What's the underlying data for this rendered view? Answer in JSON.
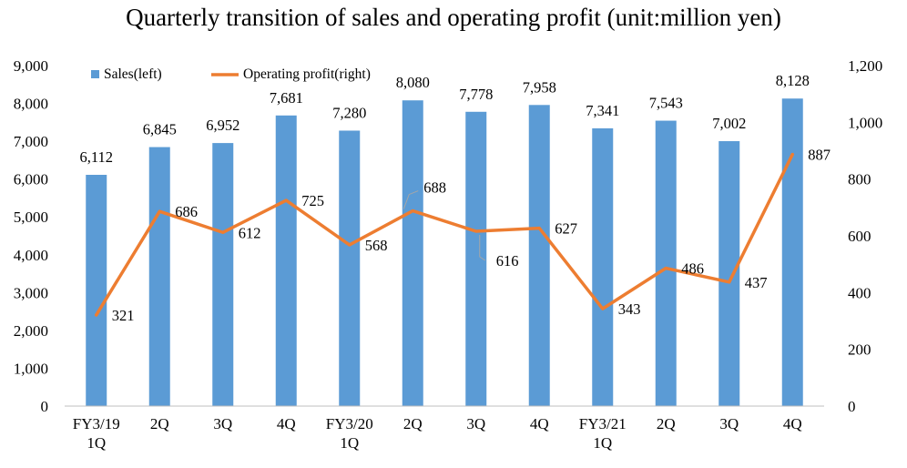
{
  "chart_data": {
    "type": "bar+line",
    "title": "Quarterly transition of sales and operating profit (unit:million yen)",
    "categories": [
      [
        "FY3/19",
        "1Q"
      ],
      [
        "2Q"
      ],
      [
        "3Q"
      ],
      [
        "4Q"
      ],
      [
        "FY3/20",
        "1Q"
      ],
      [
        "2Q"
      ],
      [
        "3Q"
      ],
      [
        "4Q"
      ],
      [
        "FY3/21",
        "1Q"
      ],
      [
        "2Q"
      ],
      [
        "3Q"
      ],
      [
        "4Q"
      ]
    ],
    "series": [
      {
        "name": "Sales(left)",
        "type": "bar",
        "axis": "left",
        "color": "#5b9bd5",
        "values": [
          6112,
          6845,
          6952,
          7681,
          7280,
          8080,
          7778,
          7958,
          7341,
          7543,
          7002,
          8128
        ],
        "labels": [
          "6,112",
          "6,845",
          "6,952",
          "7,681",
          "7,280",
          "8,080",
          "7,778",
          "7,958",
          "7,341",
          "7,543",
          "7,002",
          "8,128"
        ]
      },
      {
        "name": "Operating profit(right)",
        "type": "line",
        "axis": "right",
        "color": "#ed7d31",
        "values": [
          321,
          686,
          612,
          725,
          568,
          688,
          616,
          627,
          343,
          486,
          437,
          887
        ],
        "labels": [
          "321",
          "686",
          "612",
          "725",
          "568",
          "688",
          "616",
          "627",
          "343",
          "486",
          "437",
          "887"
        ]
      }
    ],
    "y_left": {
      "min": 0,
      "max": 9000,
      "step": 1000,
      "tick_labels": [
        "0",
        "1,000",
        "2,000",
        "3,000",
        "4,000",
        "5,000",
        "6,000",
        "7,000",
        "8,000",
        "9,000"
      ]
    },
    "y_right": {
      "min": 0,
      "max": 1200,
      "step": 200,
      "tick_labels": [
        "0",
        "200",
        "400",
        "600",
        "800",
        "1,000",
        "1,200"
      ]
    },
    "legend": "top-left",
    "grid": false
  }
}
